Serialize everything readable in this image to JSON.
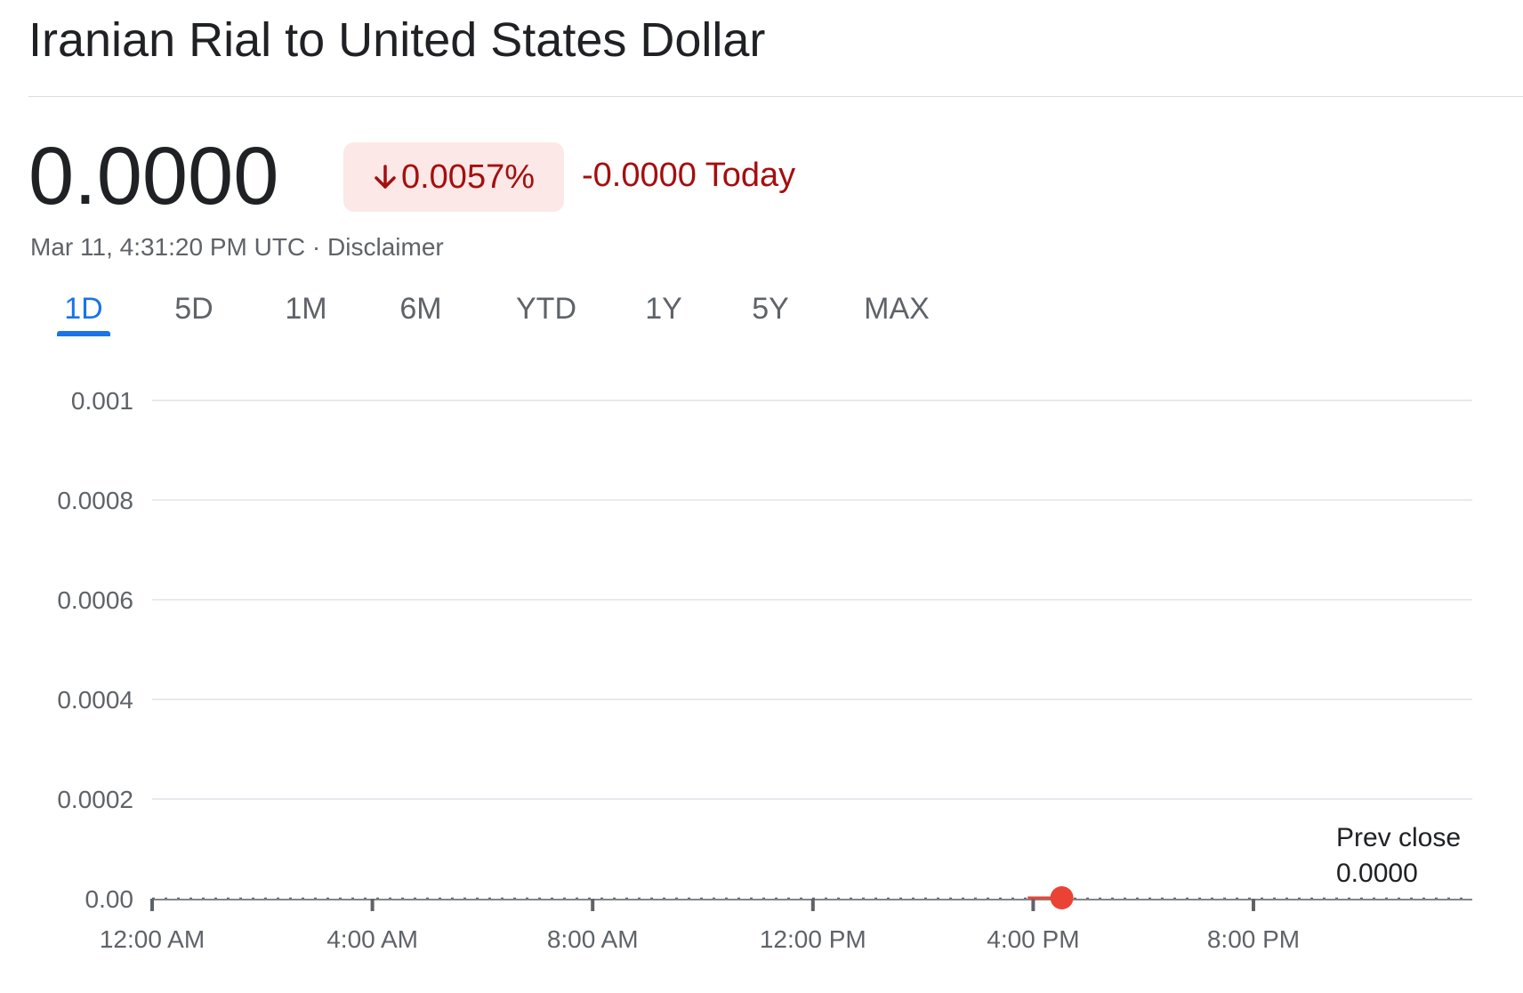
{
  "page": {
    "title": "Iranian Rial to United States Dollar"
  },
  "quote": {
    "price": "0.0000",
    "change_percent": "0.0057%",
    "change_abs": "-0.0000 Today",
    "timestamp": "Mar 11, 4:31:20 PM UTC",
    "separator": " · ",
    "disclaimer": "Disclaimer",
    "down_color": "#a50e0e",
    "badge_bg": "#fce8e6",
    "direction_icon": "arrow-down-icon"
  },
  "tabs": [
    {
      "label": "1D",
      "active": true
    },
    {
      "label": "5D",
      "active": false
    },
    {
      "label": "1M",
      "active": false
    },
    {
      "label": "6M",
      "active": false
    },
    {
      "label": "YTD",
      "active": false
    },
    {
      "label": "1Y",
      "active": false
    },
    {
      "label": "5Y",
      "active": false
    },
    {
      "label": "MAX",
      "active": false
    }
  ],
  "prev_close": {
    "label": "Prev close",
    "value": "0.0000"
  },
  "chart_data": {
    "type": "line",
    "x_ticks": [
      "12:00 AM",
      "4:00 AM",
      "8:00 AM",
      "12:00 PM",
      "4:00 PM",
      "8:00 PM"
    ],
    "y_ticks": [
      "0.00",
      "0.0002",
      "0.0004",
      "0.0006",
      "0.0008",
      "0.001"
    ],
    "ylim": [
      0,
      0.001
    ],
    "xlim_hours": [
      0,
      24
    ],
    "series": [
      {
        "points": [
          {
            "x_hours": 15.9,
            "y": 0.0
          },
          {
            "x_hours": 16.5,
            "y": 0.0
          }
        ],
        "color": "#ea4335"
      }
    ],
    "current_point": {
      "x_hours": 16.52,
      "y": 0.0
    },
    "prev_close": 0.0,
    "grid": true,
    "line_color": "#ea4335",
    "grid_color": "#e8eaed"
  }
}
